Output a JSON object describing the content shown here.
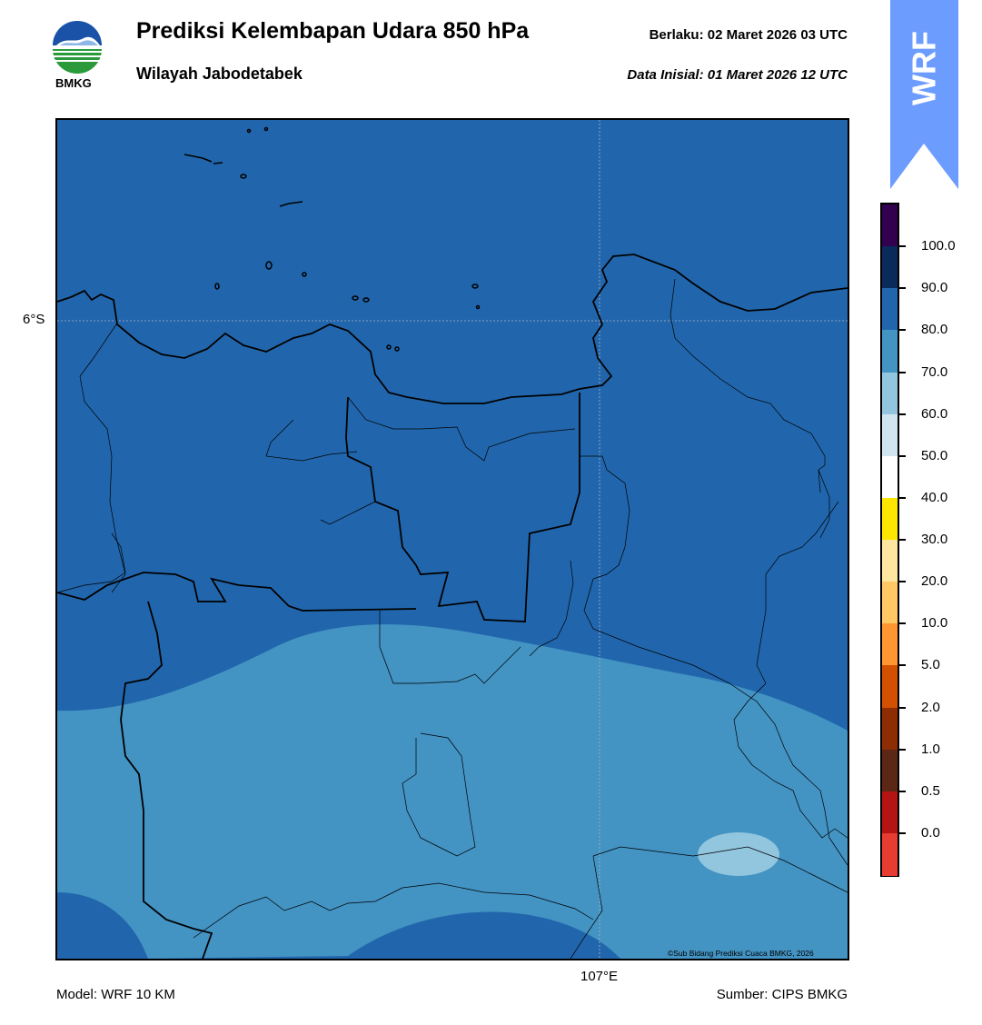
{
  "header": {
    "title": "Prediksi Kelembapan Udara 850 hPa",
    "subtitle": "Wilayah Jabodetabek",
    "valid": "Berlaku:  02 Maret 2026 03 UTC",
    "initial": "Data Inisial:  01 Maret 2026 12 UTC",
    "logo_text": "BMKG"
  },
  "badge": {
    "text": "WRF",
    "color": "#6699ff"
  },
  "map": {
    "lat_label": "6°S",
    "lon_label": "107°E",
    "copyright": "©Sub Bidang Prediksi Cuaca BMKG, 2026",
    "colors": {
      "band_80_90": "#2166ac",
      "band_70_80": "#4393c3",
      "band_60_70": "#92c5de"
    }
  },
  "footer": {
    "model": "Model: WRF 10 KM",
    "source": "Sumber: CIPS BMKG"
  },
  "colorbar": {
    "labels": [
      "100.0",
      "90.0",
      "80.0",
      "70.0",
      "60.0",
      "50.0",
      "40.0",
      "30.0",
      "20.0",
      "10.0",
      "5.0",
      "2.0",
      "1.0",
      "0.5",
      "0.0"
    ],
    "colors": [
      "#32004e",
      "#0a2a5a",
      "#2166ac",
      "#4393c3",
      "#92c5de",
      "#d1e5f0",
      "#ffffff",
      "#ffe600",
      "#ffe6a0",
      "#ffc864",
      "#ff9632",
      "#d25000",
      "#8c2d04",
      "#5a2814",
      "#b41414",
      "#e63c32"
    ]
  }
}
